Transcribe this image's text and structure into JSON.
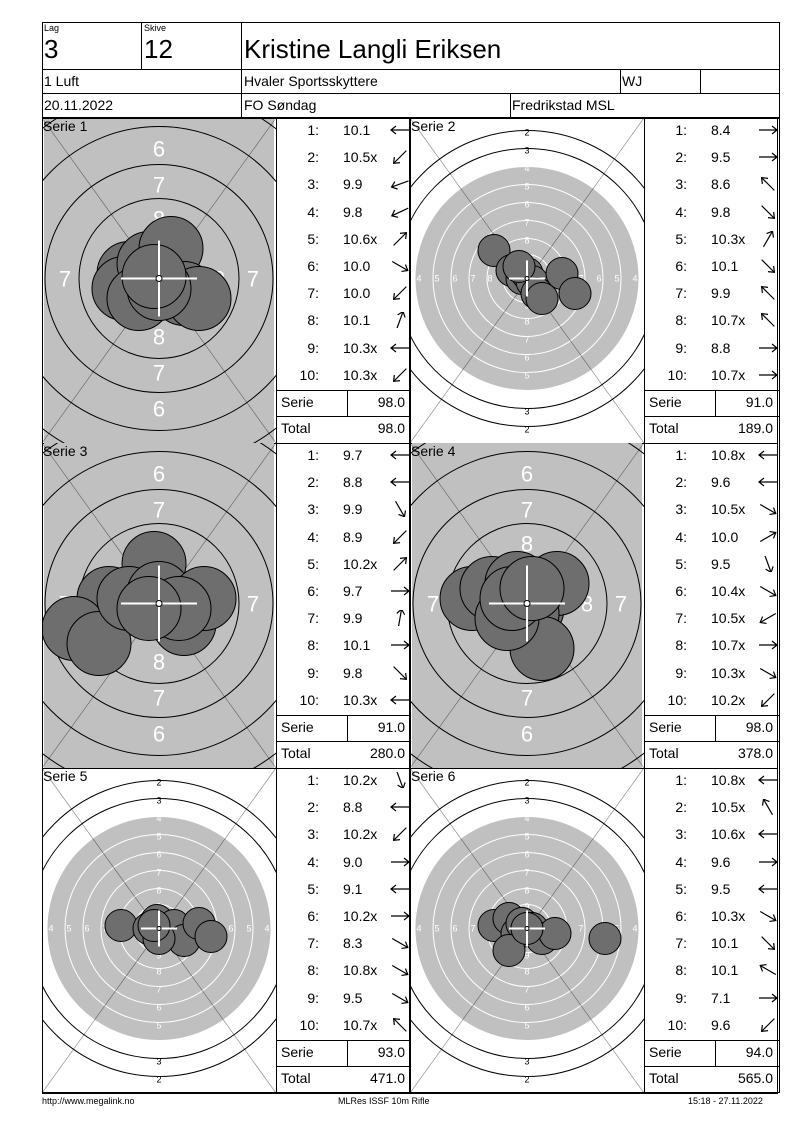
{
  "header": {
    "lag_label": "Lag",
    "lag_value": "3",
    "skive_label": "Skive",
    "skive_value": "12",
    "name": "Kristine Langli Eriksen",
    "klasse": "1 Luft",
    "club": "Hvaler Sportsskyttere",
    "code": "WJ",
    "date": "20.11.2022",
    "event": "FO Søndag",
    "location": "Fredrikstad MSL"
  },
  "labels": {
    "serie": "Serie",
    "total": "Total"
  },
  "series": [
    {
      "title": "Serie 1",
      "target": "zoom",
      "serie_sum": "98.0",
      "total_sum": "98.0",
      "shots": [
        {
          "n": "1:",
          "v": "10.1",
          "a": 180
        },
        {
          "n": "2:",
          "v": "10.5x",
          "a": 135
        },
        {
          "n": "3:",
          "v": "9.9",
          "a": 160
        },
        {
          "n": "4:",
          "v": "9.8",
          "a": 155
        },
        {
          "n": "5:",
          "v": "10.6x",
          "a": -45
        },
        {
          "n": "6:",
          "v": "10.0",
          "a": 30
        },
        {
          "n": "7:",
          "v": "10.0",
          "a": 135
        },
        {
          "n": "8:",
          "v": "10.1",
          "a": -70
        },
        {
          "n": "9:",
          "v": "10.3x",
          "a": 180
        },
        {
          "n": "10:",
          "v": "10.3x",
          "a": 135
        }
      ],
      "hits": [
        [
          -30,
          -5
        ],
        [
          -35,
          10
        ],
        [
          -10,
          -15
        ],
        [
          5,
          5
        ],
        [
          12,
          -30
        ],
        [
          25,
          15
        ],
        [
          40,
          20
        ],
        [
          -20,
          20
        ],
        [
          0,
          10
        ],
        [
          -5,
          -2
        ]
      ]
    },
    {
      "title": "Serie 2",
      "target": "full",
      "serie_sum": "91.0",
      "total_sum": "189.0",
      "shots": [
        {
          "n": "1:",
          "v": "8.4",
          "a": 0
        },
        {
          "n": "2:",
          "v": "9.5",
          "a": 0
        },
        {
          "n": "3:",
          "v": "8.6",
          "a": -135
        },
        {
          "n": "4:",
          "v": "9.8",
          "a": 45
        },
        {
          "n": "5:",
          "v": "10.3x",
          "a": -60
        },
        {
          "n": "6:",
          "v": "10.1",
          "a": 45
        },
        {
          "n": "7:",
          "v": "9.9",
          "a": -135
        },
        {
          "n": "8:",
          "v": "10.7x",
          "a": -135
        },
        {
          "n": "9:",
          "v": "8.8",
          "a": 0
        },
        {
          "n": "10:",
          "v": "10.7x",
          "a": 0
        }
      ],
      "hits": [
        [
          -33,
          -28
        ],
        [
          -15,
          -8
        ],
        [
          -5,
          0
        ],
        [
          0,
          -5
        ],
        [
          5,
          3
        ],
        [
          10,
          15
        ],
        [
          15,
          20
        ],
        [
          35,
          -5
        ],
        [
          48,
          15
        ],
        [
          -8,
          -12
        ]
      ]
    },
    {
      "title": "Serie 3",
      "target": "zoom",
      "serie_sum": "91.0",
      "total_sum": "280.0",
      "shots": [
        {
          "n": "1:",
          "v": "9.7",
          "a": 180
        },
        {
          "n": "2:",
          "v": "8.8",
          "a": 180
        },
        {
          "n": "3:",
          "v": "9.9",
          "a": 60
        },
        {
          "n": "4:",
          "v": "8.9",
          "a": 135
        },
        {
          "n": "5:",
          "v": "10.2x",
          "a": -45
        },
        {
          "n": "6:",
          "v": "9.7",
          "a": 0
        },
        {
          "n": "7:",
          "v": "9.9",
          "a": -80
        },
        {
          "n": "8:",
          "v": "10.1",
          "a": 0
        },
        {
          "n": "9:",
          "v": "9.8",
          "a": 45
        },
        {
          "n": "10:",
          "v": "10.3x",
          "a": 180
        }
      ],
      "hits": [
        [
          -5,
          -40
        ],
        [
          -50,
          -5
        ],
        [
          -85,
          25
        ],
        [
          -60,
          40
        ],
        [
          -30,
          -5
        ],
        [
          0,
          -10
        ],
        [
          25,
          20
        ],
        [
          45,
          -5
        ],
        [
          20,
          5
        ],
        [
          -10,
          5
        ]
      ]
    },
    {
      "title": "Serie 4",
      "target": "zoom",
      "serie_sum": "98.0",
      "total_sum": "378.0",
      "shots": [
        {
          "n": "1:",
          "v": "10.8x",
          "a": 180
        },
        {
          "n": "2:",
          "v": "9.6",
          "a": 180
        },
        {
          "n": "3:",
          "v": "10.5x",
          "a": 30
        },
        {
          "n": "4:",
          "v": "10.0",
          "a": -30
        },
        {
          "n": "5:",
          "v": "9.5",
          "a": 70
        },
        {
          "n": "6:",
          "v": "10.4x",
          "a": 30
        },
        {
          "n": "7:",
          "v": "10.5x",
          "a": 150
        },
        {
          "n": "8:",
          "v": "10.7x",
          "a": 0
        },
        {
          "n": "9:",
          "v": "10.3x",
          "a": 30
        },
        {
          "n": "10:",
          "v": "10.2x",
          "a": 135
        }
      ],
      "hits": [
        [
          -55,
          -5
        ],
        [
          -35,
          -15
        ],
        [
          -10,
          -20
        ],
        [
          5,
          5
        ],
        [
          30,
          -20
        ],
        [
          0,
          10
        ],
        [
          15,
          45
        ],
        [
          -20,
          15
        ],
        [
          -15,
          -5
        ],
        [
          5,
          -15
        ]
      ]
    },
    {
      "title": "Serie 5",
      "target": "full",
      "serie_sum": "93.0",
      "total_sum": "471.0",
      "shots": [
        {
          "n": "1:",
          "v": "10.2x",
          "a": 70
        },
        {
          "n": "2:",
          "v": "8.8",
          "a": 180
        },
        {
          "n": "3:",
          "v": "10.2x",
          "a": 135
        },
        {
          "n": "4:",
          "v": "9.0",
          "a": 0
        },
        {
          "n": "5:",
          "v": "9.1",
          "a": 180
        },
        {
          "n": "6:",
          "v": "10.2x",
          "a": 0
        },
        {
          "n": "7:",
          "v": "8.3",
          "a": 30
        },
        {
          "n": "8:",
          "v": "10.8x",
          "a": 30
        },
        {
          "n": "9:",
          "v": "9.5",
          "a": 30
        },
        {
          "n": "10:",
          "v": "10.7x",
          "a": -135
        }
      ],
      "hits": [
        [
          -38,
          -3
        ],
        [
          -10,
          0
        ],
        [
          -2,
          -8
        ],
        [
          5,
          5
        ],
        [
          15,
          -3
        ],
        [
          25,
          12
        ],
        [
          40,
          -5
        ],
        [
          52,
          8
        ],
        [
          0,
          10
        ],
        [
          -5,
          -3
        ]
      ]
    },
    {
      "title": "Serie 6",
      "target": "full",
      "serie_sum": "94.0",
      "total_sum": "565.0",
      "shots": [
        {
          "n": "1:",
          "v": "10.8x",
          "a": 180
        },
        {
          "n": "2:",
          "v": "10.5x",
          "a": -120
        },
        {
          "n": "3:",
          "v": "10.6x",
          "a": 180
        },
        {
          "n": "4:",
          "v": "9.6",
          "a": 0
        },
        {
          "n": "5:",
          "v": "9.5",
          "a": 180
        },
        {
          "n": "6:",
          "v": "10.3x",
          "a": 30
        },
        {
          "n": "7:",
          "v": "10.1",
          "a": 45
        },
        {
          "n": "8:",
          "v": "10.1",
          "a": -150
        },
        {
          "n": "9:",
          "v": "7.1",
          "a": 0
        },
        {
          "n": "10:",
          "v": "9.6",
          "a": 135
        }
      ],
      "hits": [
        [
          -33,
          -3
        ],
        [
          -18,
          -10
        ],
        [
          -10,
          5
        ],
        [
          -5,
          -5
        ],
        [
          5,
          0
        ],
        [
          15,
          10
        ],
        [
          28,
          5
        ],
        [
          -18,
          22
        ],
        [
          78,
          10
        ],
        [
          0,
          0
        ]
      ]
    }
  ],
  "footer": {
    "left": "http://www.megalink.no",
    "center": "MLRes ISSF 10m Rifle",
    "right": "15:18 - 27.11.2022"
  },
  "colors": {
    "ring_fill": "#c0c0c0",
    "hit_fill": "#6e6e6e"
  },
  "icons": {
    "arrow": "direction-arrow-icon"
  }
}
